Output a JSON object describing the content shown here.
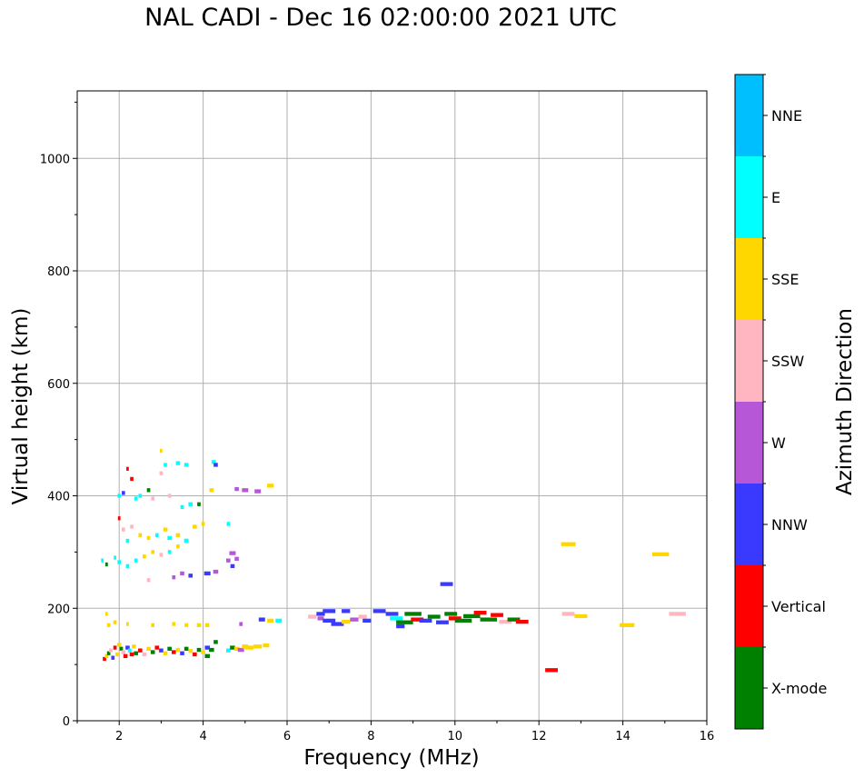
{
  "chart_data": {
    "type": "scatter",
    "title": "NAL CADI - Dec 16 02:00:00 2021 UTC",
    "xlabel": "Frequency (MHz)",
    "ylabel": "Virtual height (km)",
    "xlim": [
      1,
      16
    ],
    "ylim": [
      0,
      1120
    ],
    "xticks": [
      2,
      4,
      6,
      8,
      10,
      12,
      14,
      16
    ],
    "yticks": [
      0,
      200,
      400,
      600,
      800,
      1000
    ],
    "grid": true,
    "colorbar": {
      "label": "Azimuth Direction",
      "categories": [
        {
          "name": "X-mode",
          "color": "#008000"
        },
        {
          "name": "Vertical",
          "color": "#ff0000"
        },
        {
          "name": "NNW",
          "color": "#3a3aff"
        },
        {
          "name": "W",
          "color": "#b557d6"
        },
        {
          "name": "SSW",
          "color": "#ffb6c1"
        },
        {
          "name": "SSE",
          "color": "#ffd700"
        },
        {
          "name": "E",
          "color": "#00ffff"
        },
        {
          "name": "NNE",
          "color": "#00bfff"
        }
      ]
    },
    "points": [
      [
        1.65,
        110,
        "Vertical",
        0.08
      ],
      [
        1.7,
        115,
        "SSE",
        0.08
      ],
      [
        1.75,
        120,
        "X-mode",
        0.08
      ],
      [
        1.8,
        125,
        "SSW",
        0.08
      ],
      [
        1.85,
        112,
        "NNW",
        0.08
      ],
      [
        1.9,
        130,
        "Vertical",
        0.08
      ],
      [
        1.95,
        118,
        "SSE",
        0.08
      ],
      [
        2.0,
        135,
        "SSE",
        0.1
      ],
      [
        2.05,
        128,
        "X-mode",
        0.08
      ],
      [
        2.1,
        122,
        "SSW",
        0.1
      ],
      [
        2.15,
        115,
        "Vertical",
        0.1
      ],
      [
        2.2,
        130,
        "NNW",
        0.1
      ],
      [
        2.25,
        125,
        "E",
        0.08
      ],
      [
        2.3,
        118,
        "Vertical",
        0.1
      ],
      [
        2.35,
        132,
        "SSE",
        0.1
      ],
      [
        2.4,
        120,
        "X-mode",
        0.1
      ],
      [
        2.5,
        125,
        "Vertical",
        0.1
      ],
      [
        2.6,
        118,
        "SSW",
        0.1
      ],
      [
        2.7,
        128,
        "SSE",
        0.1
      ],
      [
        2.8,
        122,
        "X-mode",
        0.1
      ],
      [
        2.9,
        130,
        "Vertical",
        0.1
      ],
      [
        3.0,
        125,
        "NNW",
        0.1
      ],
      [
        3.1,
        120,
        "SSE",
        0.1
      ],
      [
        3.2,
        128,
        "X-mode",
        0.1
      ],
      [
        3.3,
        122,
        "Vertical",
        0.1
      ],
      [
        3.4,
        126,
        "SSE",
        0.1
      ],
      [
        3.5,
        120,
        "NNW",
        0.1
      ],
      [
        3.6,
        128,
        "X-mode",
        0.1
      ],
      [
        3.7,
        124,
        "SSE",
        0.1
      ],
      [
        3.8,
        118,
        "Vertical",
        0.1
      ],
      [
        3.9,
        126,
        "X-mode",
        0.1
      ],
      [
        4.0,
        122,
        "SSE",
        0.1
      ],
      [
        4.1,
        130,
        "NNW",
        0.12
      ],
      [
        4.2,
        126,
        "X-mode",
        0.12
      ],
      [
        4.3,
        140,
        "X-mode",
        0.1
      ],
      [
        4.1,
        115,
        "X-mode",
        0.12
      ],
      [
        4.6,
        125,
        "E",
        0.1
      ],
      [
        4.7,
        130,
        "X-mode",
        0.12
      ],
      [
        4.8,
        128,
        "SSE",
        0.12
      ],
      [
        4.9,
        126,
        "W",
        0.15
      ],
      [
        5.0,
        132,
        "SSE",
        0.15
      ],
      [
        5.1,
        130,
        "SSE",
        0.2
      ],
      [
        5.3,
        132,
        "SSE",
        0.2
      ],
      [
        5.5,
        134,
        "SSE",
        0.15
      ],
      [
        1.75,
        170,
        "SSE",
        0.08
      ],
      [
        1.9,
        175,
        "SSE",
        0.08
      ],
      [
        2.2,
        172,
        "SSE",
        0.06
      ],
      [
        2.8,
        170,
        "SSE",
        0.08
      ],
      [
        3.3,
        172,
        "SSE",
        0.08
      ],
      [
        3.6,
        170,
        "SSE",
        0.08
      ],
      [
        3.9,
        170,
        "SSE",
        0.1
      ],
      [
        4.1,
        170,
        "SSE",
        0.1
      ],
      [
        1.7,
        190,
        "SSE",
        0.06
      ],
      [
        4.9,
        172,
        "W",
        0.08
      ],
      [
        5.4,
        180,
        "NNW",
        0.15
      ],
      [
        5.6,
        178,
        "SSE",
        0.15
      ],
      [
        5.8,
        178,
        "E",
        0.15
      ],
      [
        6.8,
        182,
        "W",
        0.15
      ],
      [
        7.0,
        178,
        "NNW",
        0.3
      ],
      [
        7.2,
        172,
        "NNW",
        0.3
      ],
      [
        7.4,
        176,
        "SSE",
        0.2
      ],
      [
        7.6,
        180,
        "W",
        0.2
      ],
      [
        6.6,
        185,
        "SSW",
        0.2
      ],
      [
        6.8,
        190,
        "NNW",
        0.2
      ],
      [
        7.0,
        195,
        "NNW",
        0.3
      ],
      [
        7.4,
        195,
        "NNW",
        0.2
      ],
      [
        7.8,
        185,
        "SSW",
        0.2
      ],
      [
        7.9,
        178,
        "NNW",
        0.2
      ],
      [
        8.2,
        195,
        "NNW",
        0.3
      ],
      [
        8.5,
        190,
        "NNW",
        0.3
      ],
      [
        8.6,
        182,
        "E",
        0.3
      ],
      [
        8.8,
        175,
        "X-mode",
        0.4
      ],
      [
        9.0,
        190,
        "X-mode",
        0.4
      ],
      [
        9.1,
        180,
        "Vertical",
        0.3
      ],
      [
        9.3,
        178,
        "NNW",
        0.3
      ],
      [
        9.5,
        185,
        "X-mode",
        0.3
      ],
      [
        9.7,
        175,
        "NNW",
        0.3
      ],
      [
        9.9,
        190,
        "X-mode",
        0.3
      ],
      [
        10.0,
        182,
        "Vertical",
        0.3
      ],
      [
        10.2,
        178,
        "X-mode",
        0.4
      ],
      [
        10.4,
        186,
        "X-mode",
        0.4
      ],
      [
        10.6,
        192,
        "Vertical",
        0.3
      ],
      [
        10.8,
        180,
        "X-mode",
        0.4
      ],
      [
        11.0,
        188,
        "Vertical",
        0.3
      ],
      [
        11.2,
        176,
        "SSW",
        0.3
      ],
      [
        11.4,
        180,
        "X-mode",
        0.3
      ],
      [
        11.6,
        176,
        "Vertical",
        0.3
      ],
      [
        8.7,
        168,
        "NNW",
        0.2
      ],
      [
        9.8,
        243,
        "NNW",
        0.3
      ],
      [
        12.3,
        90,
        "Vertical",
        0.3
      ],
      [
        12.7,
        190,
        "SSW",
        0.3
      ],
      [
        12.7,
        314,
        "SSE",
        0.35
      ],
      [
        13.0,
        186,
        "SSE",
        0.3
      ],
      [
        14.1,
        170,
        "SSE",
        0.35
      ],
      [
        14.9,
        296,
        "SSE",
        0.4
      ],
      [
        15.3,
        190,
        "SSW",
        0.4
      ],
      [
        2.0,
        400,
        "E",
        0.08
      ],
      [
        2.1,
        405,
        "NNW",
        0.08
      ],
      [
        2.3,
        430,
        "Vertical",
        0.08
      ],
      [
        2.4,
        395,
        "E",
        0.08
      ],
      [
        2.5,
        400,
        "E",
        0.08
      ],
      [
        2.7,
        410,
        "X-mode",
        0.08
      ],
      [
        2.8,
        395,
        "SSW",
        0.08
      ],
      [
        3.0,
        480,
        "SSE",
        0.06
      ],
      [
        3.0,
        440,
        "SSW",
        0.08
      ],
      [
        3.1,
        455,
        "E",
        0.08
      ],
      [
        3.4,
        458,
        "E",
        0.1
      ],
      [
        3.6,
        455,
        "E",
        0.1
      ],
      [
        4.2,
        410,
        "SSE",
        0.1
      ],
      [
        4.25,
        460,
        "E",
        0.1
      ],
      [
        4.3,
        455,
        "NNW",
        0.1
      ],
      [
        4.8,
        412,
        "W",
        0.1
      ],
      [
        5.0,
        410,
        "W",
        0.15
      ],
      [
        5.3,
        408,
        "W",
        0.15
      ],
      [
        5.6,
        418,
        "SSE",
        0.15
      ],
      [
        2.2,
        448,
        "Vertical",
        0.06
      ],
      [
        3.2,
        400,
        "SSW",
        0.08
      ],
      [
        3.5,
        380,
        "E",
        0.08
      ],
      [
        3.7,
        385,
        "E",
        0.1
      ],
      [
        3.9,
        385,
        "X-mode",
        0.08
      ],
      [
        2.0,
        360,
        "Vertical",
        0.06
      ],
      [
        2.1,
        340,
        "SSW",
        0.08
      ],
      [
        2.2,
        320,
        "E",
        0.08
      ],
      [
        2.3,
        345,
        "SSW",
        0.08
      ],
      [
        2.5,
        330,
        "SSE",
        0.08
      ],
      [
        2.7,
        325,
        "SSE",
        0.08
      ],
      [
        2.9,
        330,
        "E",
        0.08
      ],
      [
        3.1,
        340,
        "SSE",
        0.1
      ],
      [
        3.2,
        325,
        "E",
        0.1
      ],
      [
        3.4,
        330,
        "SSE",
        0.1
      ],
      [
        3.6,
        320,
        "E",
        0.1
      ],
      [
        3.8,
        345,
        "SSE",
        0.1
      ],
      [
        4.0,
        350,
        "SSE",
        0.08
      ],
      [
        4.6,
        350,
        "E",
        0.08
      ],
      [
        1.9,
        290,
        "E",
        0.06
      ],
      [
        2.0,
        282,
        "E",
        0.08
      ],
      [
        2.2,
        275,
        "E",
        0.08
      ],
      [
        2.4,
        285,
        "E",
        0.08
      ],
      [
        2.6,
        292,
        "SSE",
        0.08
      ],
      [
        2.8,
        300,
        "SSE",
        0.08
      ],
      [
        3.0,
        295,
        "SSW",
        0.08
      ],
      [
        3.2,
        300,
        "E",
        0.08
      ],
      [
        3.4,
        310,
        "SSE",
        0.08
      ],
      [
        3.6,
        320,
        "E",
        0.1
      ],
      [
        1.6,
        285,
        "E",
        0.06
      ],
      [
        1.7,
        278,
        "X-mode",
        0.06
      ],
      [
        2.7,
        250,
        "SSW",
        0.08
      ],
      [
        3.3,
        255,
        "W",
        0.08
      ],
      [
        3.5,
        262,
        "W",
        0.1
      ],
      [
        3.7,
        258,
        "NNW",
        0.1
      ],
      [
        4.1,
        262,
        "NNW",
        0.15
      ],
      [
        4.3,
        265,
        "W",
        0.12
      ],
      [
        4.6,
        285,
        "W",
        0.1
      ],
      [
        4.7,
        298,
        "W",
        0.15
      ],
      [
        4.7,
        275,
        "NNW",
        0.1
      ],
      [
        4.8,
        288,
        "W",
        0.1
      ]
    ]
  }
}
